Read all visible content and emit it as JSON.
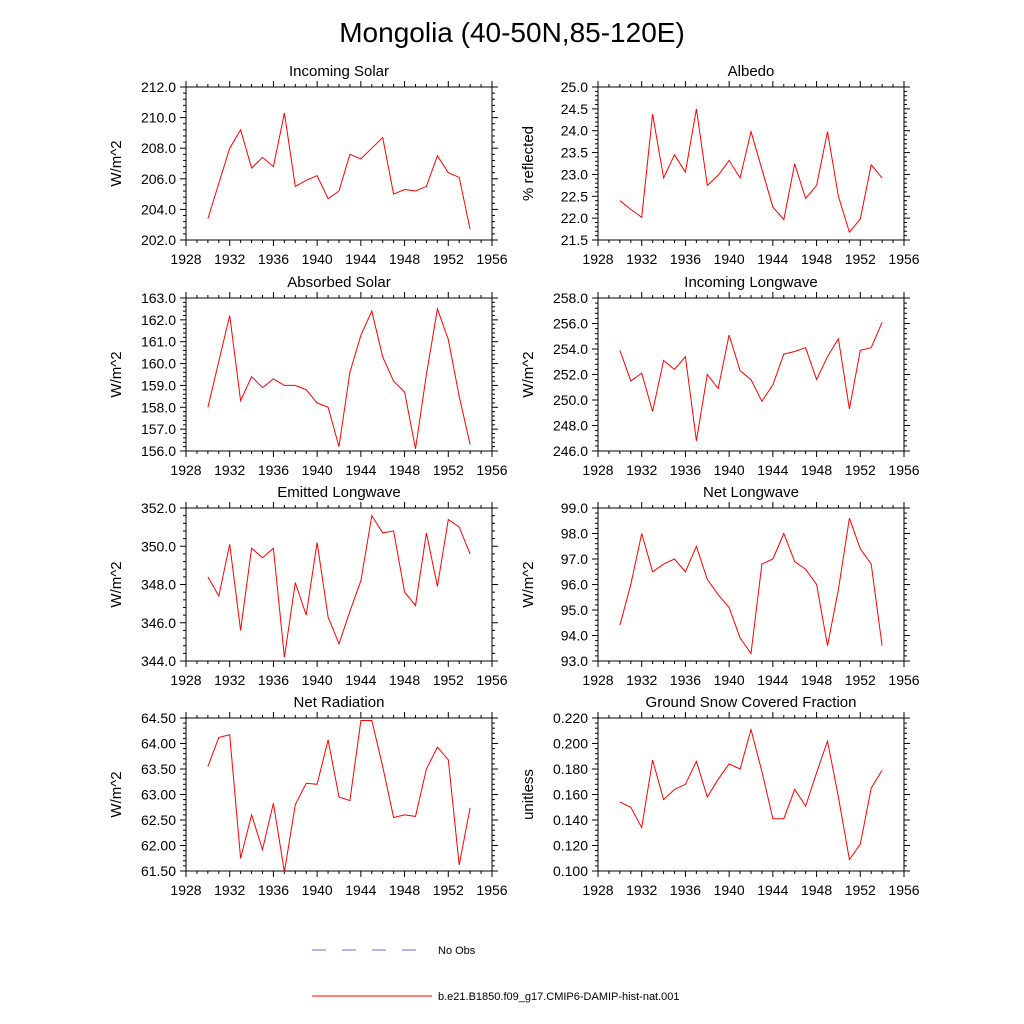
{
  "title": "Mongolia (40-50N,85-120E)",
  "colors": {
    "model": "#ff0000",
    "obs": "#6a6ad8",
    "axis": "#000000"
  },
  "legend": [
    {
      "label": "No Obs",
      "style": "dashed",
      "color": "#6a6ad8"
    },
    {
      "label": "b.e21.B1850.f09_g17.CMIP6-DAMIP-hist-nat.001",
      "style": "solid",
      "color": "#ff0000"
    }
  ],
  "chart_data": [
    {
      "type": "line",
      "title": "Incoming Solar",
      "ylabel": "W/m^2",
      "xlim": [
        1928,
        1956
      ],
      "xticks": [
        1928,
        1932,
        1936,
        1940,
        1944,
        1948,
        1952,
        1956
      ],
      "ylim": [
        202.0,
        212.0
      ],
      "yticks": [
        "202.0",
        "204.0",
        "206.0",
        "208.0",
        "210.0",
        "212.0"
      ],
      "x": [
        1930,
        1931,
        1932,
        1933,
        1934,
        1935,
        1936,
        1937,
        1938,
        1939,
        1940,
        1941,
        1942,
        1943,
        1944,
        1945,
        1946,
        1947,
        1948,
        1949,
        1950,
        1951,
        1952,
        1953,
        1954
      ],
      "series": [
        {
          "values": [
            203.4,
            205.7,
            208.0,
            209.2,
            206.7,
            207.4,
            206.8,
            210.3,
            205.5,
            205.9,
            206.2,
            204.7,
            205.2,
            207.6,
            207.3,
            208.0,
            208.7,
            205.0,
            205.3,
            205.2,
            205.5,
            207.5,
            206.4,
            206.1,
            202.7
          ]
        }
      ]
    },
    {
      "type": "line",
      "title": "Albedo",
      "ylabel": "% reflected",
      "xlim": [
        1928,
        1956
      ],
      "xticks": [
        1928,
        1932,
        1936,
        1940,
        1944,
        1948,
        1952,
        1956
      ],
      "ylim": [
        21.5,
        25.0
      ],
      "yticks": [
        "21.5",
        "22.0",
        "22.5",
        "23.0",
        "23.5",
        "24.0",
        "24.5",
        "25.0"
      ],
      "x": [
        1930,
        1931,
        1932,
        1933,
        1934,
        1935,
        1936,
        1937,
        1938,
        1939,
        1940,
        1941,
        1942,
        1943,
        1944,
        1945,
        1946,
        1947,
        1948,
        1949,
        1950,
        1951,
        1952,
        1953,
        1954
      ],
      "series": [
        {
          "values": [
            22.4,
            22.2,
            22.02,
            24.38,
            22.92,
            23.45,
            23.05,
            24.5,
            22.75,
            22.98,
            23.32,
            22.92,
            23.98,
            23.12,
            22.25,
            21.97,
            23.24,
            22.45,
            22.75,
            23.98,
            22.5,
            21.68,
            21.98,
            23.22,
            22.92
          ]
        }
      ]
    },
    {
      "type": "line",
      "title": "Absorbed Solar",
      "ylabel": "W/m^2",
      "xlim": [
        1928,
        1956
      ],
      "xticks": [
        1928,
        1932,
        1936,
        1940,
        1944,
        1948,
        1952,
        1956
      ],
      "ylim": [
        156.0,
        163.0
      ],
      "yticks": [
        "156.0",
        "157.0",
        "158.0",
        "159.0",
        "160.0",
        "161.0",
        "162.0",
        "163.0"
      ],
      "x": [
        1930,
        1931,
        1932,
        1933,
        1934,
        1935,
        1936,
        1937,
        1938,
        1939,
        1940,
        1941,
        1942,
        1943,
        1944,
        1945,
        1946,
        1947,
        1948,
        1949,
        1950,
        1951,
        1952,
        1953,
        1954
      ],
      "series": [
        {
          "values": [
            158.0,
            160.1,
            162.2,
            158.3,
            159.4,
            158.9,
            159.3,
            159.0,
            159.0,
            158.8,
            158.2,
            158.0,
            156.2,
            159.6,
            161.3,
            162.4,
            160.3,
            159.2,
            158.7,
            156.1,
            159.5,
            162.5,
            161.1,
            158.5,
            156.3
          ]
        }
      ]
    },
    {
      "type": "line",
      "title": "Incoming Longwave",
      "ylabel": "W/m^2",
      "xlim": [
        1928,
        1956
      ],
      "xticks": [
        1928,
        1932,
        1936,
        1940,
        1944,
        1948,
        1952,
        1956
      ],
      "ylim": [
        246.0,
        258.0
      ],
      "yticks": [
        "246.0",
        "248.0",
        "250.0",
        "252.0",
        "254.0",
        "256.0",
        "258.0"
      ],
      "x": [
        1930,
        1931,
        1932,
        1933,
        1934,
        1935,
        1936,
        1937,
        1938,
        1939,
        1940,
        1941,
        1942,
        1943,
        1944,
        1945,
        1946,
        1947,
        1948,
        1949,
        1950,
        1951,
        1952,
        1953,
        1954
      ],
      "series": [
        {
          "values": [
            253.9,
            251.5,
            252.1,
            249.1,
            253.1,
            252.4,
            253.4,
            246.8,
            252.0,
            250.9,
            255.1,
            252.3,
            251.6,
            249.9,
            251.2,
            253.6,
            253.8,
            254.1,
            251.6,
            253.4,
            254.8,
            249.3,
            253.9,
            254.1,
            256.1
          ]
        }
      ]
    },
    {
      "type": "line",
      "title": "Emitted Longwave",
      "ylabel": "W/m^2",
      "xlim": [
        1928,
        1956
      ],
      "xticks": [
        1928,
        1932,
        1936,
        1940,
        1944,
        1948,
        1952,
        1956
      ],
      "ylim": [
        344.0,
        352.0
      ],
      "yticks": [
        "344.0",
        "346.0",
        "348.0",
        "350.0",
        "352.0"
      ],
      "x": [
        1930,
        1931,
        1932,
        1933,
        1934,
        1935,
        1936,
        1937,
        1938,
        1939,
        1940,
        1941,
        1942,
        1943,
        1944,
        1945,
        1946,
        1947,
        1948,
        1949,
        1950,
        1951,
        1952,
        1953,
        1954
      ],
      "series": [
        {
          "values": [
            348.4,
            347.4,
            350.1,
            345.6,
            349.9,
            349.4,
            349.9,
            344.2,
            348.1,
            346.4,
            350.2,
            346.3,
            344.9,
            346.6,
            348.2,
            351.6,
            350.7,
            350.8,
            347.6,
            346.9,
            350.7,
            347.9,
            351.4,
            351.0,
            349.6
          ]
        }
      ]
    },
    {
      "type": "line",
      "title": "Net Longwave",
      "ylabel": "W/m^2",
      "xlim": [
        1928,
        1956
      ],
      "xticks": [
        1928,
        1932,
        1936,
        1940,
        1944,
        1948,
        1952,
        1956
      ],
      "ylim": [
        93.0,
        99.0
      ],
      "yticks": [
        "93.0",
        "94.0",
        "95.0",
        "96.0",
        "97.0",
        "98.0",
        "99.0"
      ],
      "x": [
        1930,
        1931,
        1932,
        1933,
        1934,
        1935,
        1936,
        1937,
        1938,
        1939,
        1940,
        1941,
        1942,
        1943,
        1944,
        1945,
        1946,
        1947,
        1948,
        1949,
        1950,
        1951,
        1952,
        1953,
        1954
      ],
      "series": [
        {
          "values": [
            94.4,
            96.0,
            98.0,
            96.5,
            96.8,
            97.0,
            96.5,
            97.5,
            96.2,
            95.6,
            95.1,
            93.9,
            93.3,
            96.8,
            97.0,
            98.0,
            96.9,
            96.6,
            96.0,
            93.6,
            95.8,
            98.6,
            97.4,
            96.8,
            93.6
          ]
        }
      ]
    },
    {
      "type": "line",
      "title": "Net Radiation",
      "ylabel": "W/m^2",
      "xlim": [
        1928,
        1956
      ],
      "xticks": [
        1928,
        1932,
        1936,
        1940,
        1944,
        1948,
        1952,
        1956
      ],
      "ylim": [
        61.5,
        64.5
      ],
      "yticks": [
        "61.50",
        "62.00",
        "62.50",
        "63.00",
        "63.50",
        "64.00",
        "64.50"
      ],
      "x": [
        1930,
        1931,
        1932,
        1933,
        1934,
        1935,
        1936,
        1937,
        1938,
        1939,
        1940,
        1941,
        1942,
        1943,
        1944,
        1945,
        1946,
        1947,
        1948,
        1949,
        1950,
        1951,
        1952,
        1953,
        1954
      ],
      "series": [
        {
          "values": [
            63.55,
            64.12,
            64.17,
            61.75,
            62.6,
            61.92,
            62.83,
            61.48,
            62.8,
            63.22,
            63.2,
            64.07,
            62.95,
            62.88,
            64.45,
            64.45,
            63.55,
            62.55,
            62.6,
            62.57,
            63.5,
            63.93,
            63.68,
            61.62,
            62.74
          ]
        }
      ]
    },
    {
      "type": "line",
      "title": "Ground Snow Covered Fraction",
      "ylabel": "unitless",
      "xlim": [
        1928,
        1956
      ],
      "xticks": [
        1928,
        1932,
        1936,
        1940,
        1944,
        1948,
        1952,
        1956
      ],
      "ylim": [
        0.1,
        0.22
      ],
      "yticks": [
        "0.100",
        "0.120",
        "0.140",
        "0.160",
        "0.180",
        "0.200",
        "0.220"
      ],
      "x": [
        1930,
        1931,
        1932,
        1933,
        1934,
        1935,
        1936,
        1937,
        1938,
        1939,
        1940,
        1941,
        1942,
        1943,
        1944,
        1945,
        1946,
        1947,
        1948,
        1949,
        1950,
        1951,
        1952,
        1953,
        1954
      ],
      "series": [
        {
          "values": [
            0.154,
            0.15,
            0.134,
            0.187,
            0.156,
            0.164,
            0.168,
            0.186,
            0.158,
            0.172,
            0.184,
            0.18,
            0.211,
            0.178,
            0.141,
            0.141,
            0.164,
            0.151,
            0.177,
            0.202,
            0.158,
            0.109,
            0.121,
            0.165,
            0.179
          ]
        }
      ]
    }
  ]
}
